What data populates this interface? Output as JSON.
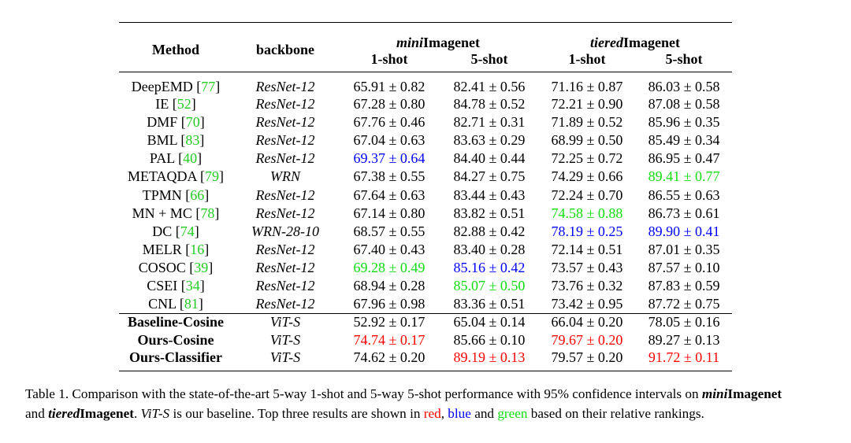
{
  "table": {
    "headers": {
      "method": "Method",
      "backbone": "backbone",
      "group1_prefix": "mini",
      "group1_suffix": "Imagenet",
      "group2_prefix": "tiered",
      "group2_suffix": "Imagenet",
      "shot1": "1-shot",
      "shot5": "5-shot"
    },
    "rows": [
      {
        "method": "DeepEMD",
        "cite": "77",
        "backbone": "ResNet-12",
        "cells": [
          "65.91 ± 0.82",
          "82.41 ± 0.56",
          "71.16 ± 0.87",
          "86.03 ± 0.58"
        ],
        "hl": [
          "",
          "",
          "",
          ""
        ]
      },
      {
        "method": "IE",
        "cite": "52",
        "backbone": "ResNet-12",
        "cells": [
          "67.28 ± 0.80",
          "84.78 ± 0.52",
          "72.21 ± 0.90",
          "87.08 ± 0.58"
        ],
        "hl": [
          "",
          "",
          "",
          ""
        ]
      },
      {
        "method": "DMF",
        "cite": "70",
        "backbone": "ResNet-12",
        "cells": [
          "67.76 ± 0.46",
          "82.71 ± 0.31",
          "71.89 ± 0.52",
          "85.96 ± 0.35"
        ],
        "hl": [
          "",
          "",
          "",
          ""
        ]
      },
      {
        "method": "BML",
        "cite": "83",
        "backbone": "ResNet-12",
        "cells": [
          "67.04 ± 0.63",
          "83.63 ± 0.29",
          "68.99 ± 0.50",
          "85.49 ± 0.34"
        ],
        "hl": [
          "",
          "",
          "",
          ""
        ]
      },
      {
        "method": "PAL",
        "cite": "40",
        "backbone": "ResNet-12",
        "cells": [
          "69.37 ± 0.64",
          "84.40 ± 0.44",
          "72.25 ± 0.72",
          "86.95 ± 0.47"
        ],
        "hl": [
          "blue",
          "",
          "",
          ""
        ]
      },
      {
        "method": "METAQDA",
        "cite": "79",
        "backbone": "WRN",
        "cells": [
          "67.38 ± 0.55",
          "84.27 ± 0.75",
          "74.29 ± 0.66",
          "89.41 ± 0.77"
        ],
        "hl": [
          "",
          "",
          "",
          "green"
        ]
      },
      {
        "method": "TPMN",
        "cite": "66",
        "backbone": "ResNet-12",
        "cells": [
          "67.64 ± 0.63",
          "83.44 ± 0.43",
          "72.24 ± 0.70",
          "86.55 ± 0.63"
        ],
        "hl": [
          "",
          "",
          "",
          ""
        ]
      },
      {
        "method": "MN + MC",
        "cite": "78",
        "backbone": "ResNet-12",
        "cells": [
          "67.14 ± 0.80",
          "83.82 ± 0.51",
          "74.58 ± 0.88",
          "86.73 ± 0.61"
        ],
        "hl": [
          "",
          "",
          "green",
          ""
        ]
      },
      {
        "method": "DC",
        "cite": "74",
        "backbone": "WRN-28-10",
        "cells": [
          "68.57 ± 0.55",
          "82.88 ± 0.42",
          "78.19 ± 0.25",
          "89.90 ± 0.41"
        ],
        "hl": [
          "",
          "",
          "blue",
          "blue"
        ]
      },
      {
        "method": "MELR",
        "cite": "16",
        "backbone": "ResNet-12",
        "cells": [
          "67.40 ± 0.43",
          "83.40 ± 0.28",
          "72.14 ± 0.51",
          "87.01 ± 0.35"
        ],
        "hl": [
          "",
          "",
          "",
          ""
        ]
      },
      {
        "method": "COSOC",
        "cite": "39",
        "backbone": "ResNet-12",
        "cells": [
          "69.28 ± 0.49",
          "85.16 ± 0.42",
          "73.57 ± 0.43",
          "87.57 ± 0.10"
        ],
        "hl": [
          "green",
          "blue",
          "",
          ""
        ]
      },
      {
        "method": "CSEI",
        "cite": "34",
        "backbone": "ResNet-12",
        "cells": [
          "68.94 ± 0.28",
          "85.07 ± 0.50",
          "73.76 ± 0.32",
          "87.83 ± 0.59"
        ],
        "hl": [
          "",
          "green",
          "",
          ""
        ]
      },
      {
        "method": "CNL",
        "cite": "81",
        "backbone": "ResNet-12",
        "cells": [
          "67.96 ± 0.98",
          "83.36 ± 0.51",
          "73.42 ± 0.95",
          "87.72 ± 0.75"
        ],
        "hl": [
          "",
          "",
          "",
          ""
        ]
      },
      {
        "method": "Baseline-Cosine",
        "cite": "",
        "backbone": "ViT-S",
        "cells": [
          "52.92 ± 0.17",
          "65.04 ± 0.14",
          "66.04 ± 0.20",
          "78.05 ± 0.16"
        ],
        "hl": [
          "",
          "",
          "",
          ""
        ],
        "bold": true
      },
      {
        "method": "Ours-Cosine",
        "cite": "",
        "backbone": "ViT-S",
        "cells": [
          "74.74 ± 0.17",
          "85.66 ± 0.10",
          "79.67 ± 0.20",
          "89.27 ± 0.13"
        ],
        "hl": [
          "red",
          "",
          "red",
          ""
        ],
        "bold": true
      },
      {
        "method": "Ours-Classifier",
        "cite": "",
        "backbone": "ViT-S",
        "cells": [
          "74.62 ± 0.20",
          "89.19 ± 0.13",
          "79.57 ± 0.20",
          "91.72 ± 0.11"
        ],
        "hl": [
          "",
          "red",
          "",
          "red"
        ],
        "bold": true
      }
    ]
  },
  "caption": {
    "label": "Table 1.",
    "text1": " Comparison with the state-of-the-art 5-way 1-shot and 5-way 5-shot performance with 95% confidence intervals on ",
    "mini": "mini",
    "imagenet": "Imagenet",
    "and": "and ",
    "tiered": "tiered",
    "text2": ". ",
    "vits": "ViT-S",
    "text3": " is our baseline. Top three results are shown in ",
    "red": "red",
    "comma": ", ",
    "blue": "blue",
    "and2": " and ",
    "green": "green",
    "text4": " based on their relative rankings."
  }
}
